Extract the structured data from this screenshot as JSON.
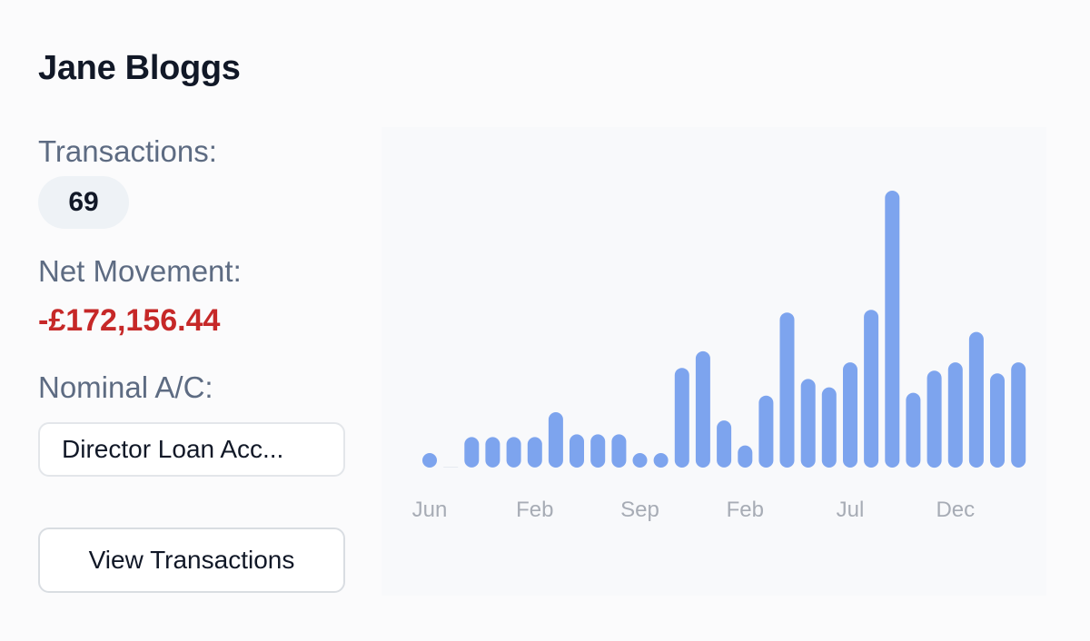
{
  "card": {
    "name": "Jane Bloggs",
    "transactions_label": "Transactions:",
    "transactions_count": "69",
    "net_movement_label": "Net Movement:",
    "net_movement_value": "-£172,156.44",
    "nominal_label": "Nominal A/C:",
    "nominal_value": "Director Loan Acc...",
    "view_button_label": "View Transactions"
  },
  "colors": {
    "bar": "#7da4ee",
    "negative": "#c62828",
    "label": "#5d6b82",
    "tick": "#a7acb5"
  },
  "chart_data": {
    "type": "bar",
    "title": "",
    "xlabel": "",
    "ylabel": "",
    "ylim": [
      0,
      100
    ],
    "x_tick_labels": [
      "Jun",
      "Feb",
      "Sep",
      "Feb",
      "Jul",
      "Dec"
    ],
    "values": [
      5,
      0,
      11,
      11,
      11,
      11,
      20,
      12,
      12,
      12,
      4,
      4,
      36,
      42,
      17,
      8,
      26,
      56,
      32,
      29,
      38,
      57,
      100,
      27,
      35,
      38,
      49,
      34,
      38
    ],
    "grid": false,
    "legend": false
  }
}
